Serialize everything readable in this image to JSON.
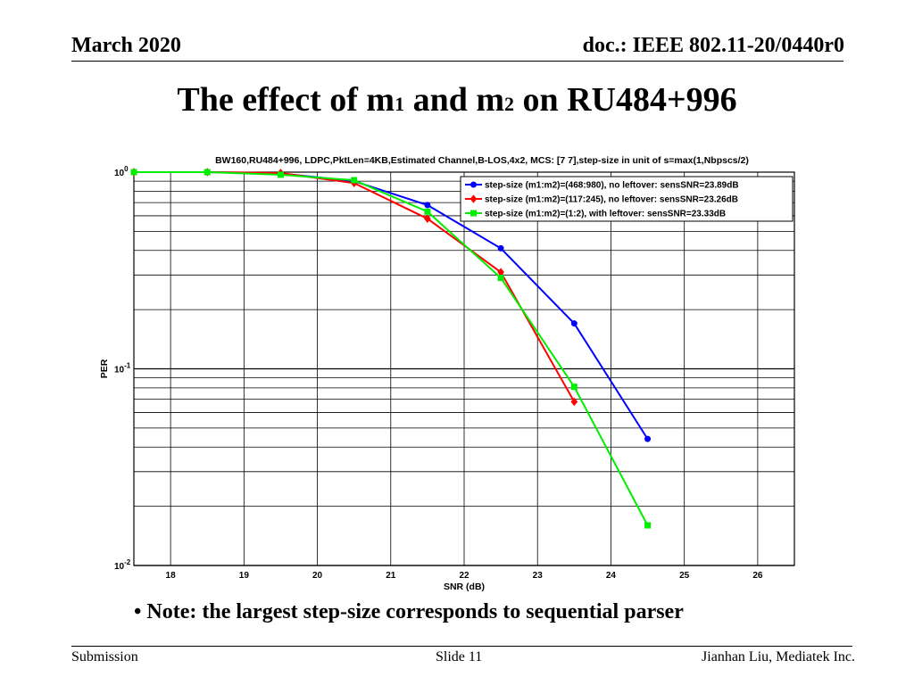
{
  "header": {
    "date": "March 2020",
    "doc_id": "doc.: IEEE 802.11-20/0440r0"
  },
  "slide": {
    "title_a": "The effect of m",
    "title_sub1": "1",
    "title_b": " and m",
    "title_sub2": "2",
    "title_c": " on RU484+996",
    "note": "Note: the largest step-size corresponds to sequential parser"
  },
  "footer": {
    "left": "Submission",
    "center": "Slide 11",
    "right": "Jianhan Liu, Mediatek Inc."
  },
  "chart_data": {
    "type": "line",
    "title": "BW160,RU484+996, LDPC,PktLen=4KB,Estimated Channel,B-LOS,4x2, MCS: [7  7],step-size in unit of s=max(1,Nbpscs/2)",
    "xlabel": "SNR (dB)",
    "ylabel": "PER",
    "xlim": [
      17.5,
      26.5
    ],
    "ylim": [
      0.01,
      1
    ],
    "yscale": "log",
    "x_ticks": [
      "18",
      "19",
      "20",
      "21",
      "22",
      "23",
      "24",
      "25",
      "26"
    ],
    "y_ticks": [
      {
        "base": "10",
        "exp": "0"
      },
      {
        "base": "10",
        "exp": "-1"
      },
      {
        "base": "10",
        "exp": "-2"
      }
    ],
    "grid": true,
    "legend_position": "top-right",
    "series": [
      {
        "name": "step-size (m1:m2)=(468:980), no leftover:   sensSNR=23.89dB",
        "color": "#0000ff",
        "marker": "circle",
        "x": [
          17.5,
          18.5,
          19.5,
          20.5,
          21.5,
          22.5,
          23.5,
          24.5
        ],
        "y": [
          1.0,
          1.0,
          0.985,
          0.9,
          0.68,
          0.41,
          0.17,
          0.044
        ]
      },
      {
        "name": "step-size (m1:m2)=(117:245), no leftover:   sensSNR=23.26dB",
        "color": "#ff0000",
        "marker": "diamond",
        "x": [
          17.5,
          18.5,
          19.5,
          20.5,
          21.5,
          22.5,
          23.5
        ],
        "y": [
          1.0,
          1.0,
          0.99,
          0.88,
          0.58,
          0.31,
          0.068
        ]
      },
      {
        "name": "step-size (m1:m2)=(1:2),  with leftover:   sensSNR=23.33dB",
        "color": "#00ee00",
        "marker": "square",
        "x": [
          17.5,
          18.5,
          19.5,
          20.5,
          21.5,
          22.5,
          23.5,
          24.5
        ],
        "y": [
          1.0,
          1.0,
          0.97,
          0.91,
          0.63,
          0.29,
          0.081,
          0.016
        ]
      }
    ]
  }
}
